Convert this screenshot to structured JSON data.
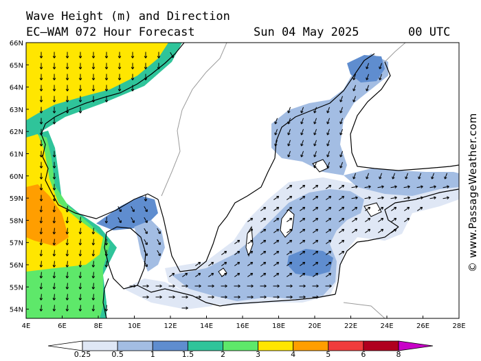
{
  "header": {
    "title": "Wave Height (m) and Direction",
    "model": "EC—WAM 072 Hour Forecast",
    "date": "Sun 04 May 2025",
    "time": "00 UTC"
  },
  "axes": {
    "lat_labels": [
      "66N",
      "65N",
      "64N",
      "63N",
      "62N",
      "61N",
      "60N",
      "59N",
      "58N",
      "57N",
      "56N",
      "55N",
      "54N"
    ],
    "lon_labels": [
      "4E",
      "6E",
      "8E",
      "10E",
      "12E",
      "14E",
      "16E",
      "18E",
      "20E",
      "22E",
      "24E",
      "26E",
      "28E"
    ],
    "lat_range": [
      53.7,
      66.0
    ],
    "lon_range": [
      4,
      28
    ]
  },
  "legend": {
    "labels": [
      "0.25",
      "0.5",
      "1",
      "1.5",
      "2",
      "3",
      "4",
      "5",
      "6",
      "8"
    ],
    "colors": [
      "#ffffff",
      "#dfe7f5",
      "#a3bde3",
      "#5f8dcf",
      "#2fc49a",
      "#5ee86a",
      "#ffe600",
      "#ff9e00",
      "#f03c3c",
      "#b0001e",
      "#c800c8"
    ],
    "unit": "m"
  },
  "credit": "© www.PassageWeather.com",
  "colors": {
    "land": "#ffffff",
    "coast": "#000000",
    "border": "#9a9a9a",
    "arrow": "#000000"
  }
}
